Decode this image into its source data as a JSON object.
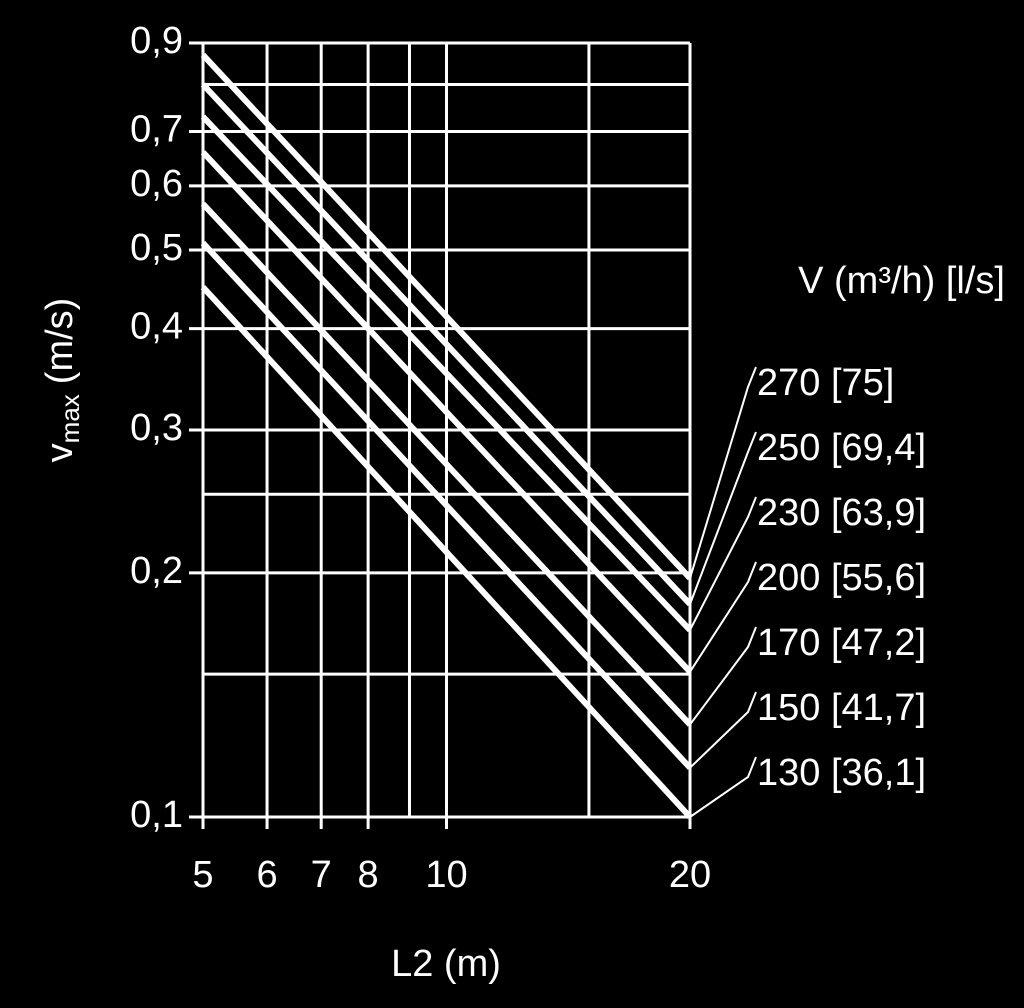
{
  "chart_data": {
    "type": "line",
    "x_label": "L2 (m)",
    "y_label": {
      "main": "v",
      "sub": "max",
      "unit": "(m/s)"
    },
    "legend_title": "V (m³/h) [l/s]",
    "log_x": true,
    "log_y": true,
    "grid": true,
    "background": "#000000",
    "foreground": "#ffffff",
    "x": [
      5,
      20
    ],
    "xlim": [
      5,
      20
    ],
    "xticks": [
      5,
      6,
      7,
      8,
      10,
      20
    ],
    "x_minor_ticks": [
      9,
      15
    ],
    "ylim": [
      0.1,
      0.9
    ],
    "yticks": [
      {
        "value": 0.9,
        "label": "0,9"
      },
      {
        "value": 0.7,
        "label": "0,7"
      },
      {
        "value": 0.6,
        "label": "0,6"
      },
      {
        "value": 0.5,
        "label": "0,5"
      },
      {
        "value": 0.4,
        "label": "0,4"
      },
      {
        "value": 0.3,
        "label": "0,3"
      },
      {
        "value": 0.2,
        "label": "0,2"
      },
      {
        "value": 0.1,
        "label": "0,1"
      }
    ],
    "y_minor_ticks": [
      0.8,
      0.25,
      0.15
    ],
    "series": [
      {
        "name": "270 [75]",
        "color": "#ffffff",
        "values": [
          0.87,
          0.197
        ]
      },
      {
        "name": "250 [69,4]",
        "color": "#ffffff",
        "values": [
          0.8,
          0.183
        ]
      },
      {
        "name": "230 [63,9]",
        "color": "#ffffff",
        "values": [
          0.73,
          0.17
        ]
      },
      {
        "name": "200 [55,6]",
        "color": "#ffffff",
        "values": [
          0.66,
          0.151
        ]
      },
      {
        "name": "170 [47,2]",
        "color": "#ffffff",
        "values": [
          0.57,
          0.13
        ]
      },
      {
        "name": "150 [41,7]",
        "color": "#ffffff",
        "values": [
          0.51,
          0.115
        ]
      },
      {
        "name": "130 [36,1]",
        "color": "#ffffff",
        "values": [
          0.45,
          0.1
        ]
      }
    ]
  }
}
